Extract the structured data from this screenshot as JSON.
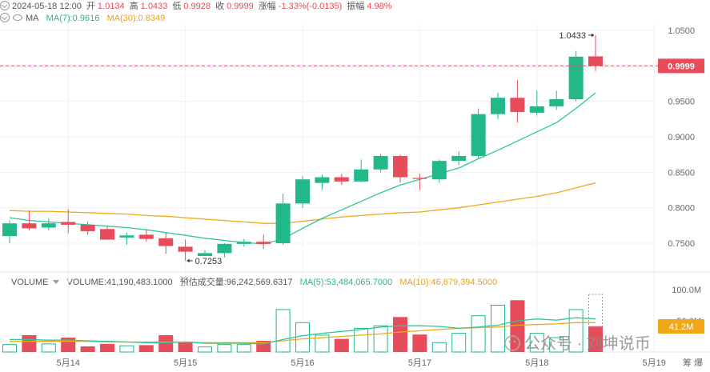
{
  "header": {
    "datetime": "2024-05-18 12:00",
    "open_label": "开",
    "open_value": "1.0134",
    "high_label": "高",
    "high_value": "1.0433",
    "low_label": "低",
    "low_value": "0.9928",
    "close_label": "收",
    "close_value": "0.9999",
    "change_label": "涨幅",
    "change_value": "-1.33%(-0.0135)",
    "amplitude_label": "振幅",
    "amplitude_value": "4.98%"
  },
  "ma_legend": {
    "label": "MA",
    "ma7": "MA(7):0.9616",
    "ma30": "MA(30):0.8349"
  },
  "volume_legend": {
    "label": "VOLUME",
    "volume": "VOLUME:41,190,483.1000",
    "turnover": "预估成交量:96,242,569.6317",
    "ma5": "MA(5):53,484,065.7000",
    "ma10": "MA(10):46,879,394.5000"
  },
  "price_axis": {
    "ticks": [
      "1.0500",
      "1.0000",
      "0.9500",
      "0.9000",
      "0.8500",
      "0.8000",
      "0.7500"
    ],
    "current_price_tag": "0.9999"
  },
  "volume_axis": {
    "ticks": [
      "100.0M",
      "50.0M"
    ],
    "current_volume_tag": "41.2M"
  },
  "annotations": {
    "high": "1.0433",
    "low": "0.7253"
  },
  "watermark": "公众号 · 刘坤说币",
  "bottom_right_text": "筹 爆",
  "colors": {
    "up": "#23b88a",
    "down": "#e74c5a",
    "ma_short": "#2ec79a",
    "ma_long": "#f0a818",
    "grid": "#eef0f3",
    "axis_text": "#666666"
  },
  "chart_data": {
    "type": "candlestick",
    "x_ticks": [
      "5月14",
      "5月15",
      "5月16",
      "5月17",
      "5月18",
      "5月19"
    ],
    "candles": [
      {
        "o": 0.76,
        "h": 0.782,
        "l": 0.75,
        "c": 0.778
      },
      {
        "o": 0.778,
        "h": 0.796,
        "l": 0.768,
        "c": 0.771
      },
      {
        "o": 0.772,
        "h": 0.785,
        "l": 0.768,
        "c": 0.778
      },
      {
        "o": 0.78,
        "h": 0.798,
        "l": 0.764,
        "c": 0.776
      },
      {
        "o": 0.776,
        "h": 0.78,
        "l": 0.762,
        "c": 0.767
      },
      {
        "o": 0.77,
        "h": 0.775,
        "l": 0.755,
        "c": 0.755
      },
      {
        "o": 0.758,
        "h": 0.765,
        "l": 0.748,
        "c": 0.761
      },
      {
        "o": 0.762,
        "h": 0.768,
        "l": 0.752,
        "c": 0.756
      },
      {
        "o": 0.757,
        "h": 0.765,
        "l": 0.735,
        "c": 0.746
      },
      {
        "o": 0.745,
        "h": 0.755,
        "l": 0.7253,
        "c": 0.738
      },
      {
        "o": 0.732,
        "h": 0.74,
        "l": 0.732,
        "c": 0.736
      },
      {
        "o": 0.736,
        "h": 0.75,
        "l": 0.73,
        "c": 0.749
      },
      {
        "o": 0.749,
        "h": 0.756,
        "l": 0.745,
        "c": 0.752
      },
      {
        "o": 0.752,
        "h": 0.762,
        "l": 0.742,
        "c": 0.749
      },
      {
        "o": 0.75,
        "h": 0.82,
        "l": 0.748,
        "c": 0.806
      },
      {
        "o": 0.806,
        "h": 0.845,
        "l": 0.8,
        "c": 0.84
      },
      {
        "o": 0.835,
        "h": 0.847,
        "l": 0.825,
        "c": 0.843
      },
      {
        "o": 0.843,
        "h": 0.848,
        "l": 0.832,
        "c": 0.837
      },
      {
        "o": 0.837,
        "h": 0.868,
        "l": 0.836,
        "c": 0.854
      },
      {
        "o": 0.854,
        "h": 0.876,
        "l": 0.85,
        "c": 0.873
      },
      {
        "o": 0.873,
        "h": 0.875,
        "l": 0.835,
        "c": 0.843
      },
      {
        "o": 0.842,
        "h": 0.848,
        "l": 0.825,
        "c": 0.841
      },
      {
        "o": 0.84,
        "h": 0.868,
        "l": 0.835,
        "c": 0.866
      },
      {
        "o": 0.866,
        "h": 0.88,
        "l": 0.86,
        "c": 0.873
      },
      {
        "o": 0.873,
        "h": 0.94,
        "l": 0.87,
        "c": 0.932
      },
      {
        "o": 0.932,
        "h": 0.962,
        "l": 0.925,
        "c": 0.955
      },
      {
        "o": 0.955,
        "h": 0.98,
        "l": 0.92,
        "c": 0.935
      },
      {
        "o": 0.934,
        "h": 0.965,
        "l": 0.93,
        "c": 0.943
      },
      {
        "o": 0.943,
        "h": 0.965,
        "l": 0.938,
        "c": 0.953
      },
      {
        "o": 0.953,
        "h": 1.021,
        "l": 0.95,
        "c": 1.013
      },
      {
        "o": 1.0134,
        "h": 1.0433,
        "l": 0.9928,
        "c": 0.9999
      }
    ],
    "ma7": [
      0.786,
      0.782,
      0.78,
      0.778,
      0.776,
      0.774,
      0.772,
      0.769,
      0.765,
      0.761,
      0.757,
      0.754,
      0.751,
      0.749,
      0.756,
      0.771,
      0.785,
      0.797,
      0.809,
      0.821,
      0.832,
      0.84,
      0.848,
      0.856,
      0.869,
      0.881,
      0.894,
      0.907,
      0.92,
      0.94,
      0.962
    ],
    "ma30": [
      0.796,
      0.795,
      0.795,
      0.794,
      0.793,
      0.792,
      0.791,
      0.789,
      0.788,
      0.786,
      0.784,
      0.782,
      0.78,
      0.778,
      0.778,
      0.781,
      0.784,
      0.787,
      0.789,
      0.791,
      0.793,
      0.794,
      0.797,
      0.8,
      0.804,
      0.808,
      0.812,
      0.816,
      0.821,
      0.828,
      0.835
    ],
    "volume_million": [
      12,
      27,
      13,
      23,
      9,
      13,
      10,
      11,
      27,
      15,
      8,
      12,
      12,
      18,
      68,
      47,
      27,
      21,
      38,
      42,
      56,
      28,
      15,
      30,
      58,
      75,
      83,
      30,
      23,
      68,
      41
    ],
    "volume_ma": [
      20,
      20,
      19,
      19,
      18,
      17,
      16,
      15,
      15,
      16,
      14,
      14,
      14,
      13,
      20,
      26,
      30,
      33,
      36,
      40,
      42,
      42,
      41,
      38,
      40,
      43,
      50,
      53,
      51,
      55,
      53
    ],
    "volume_ma10": [
      17,
      17,
      17,
      17,
      17,
      16,
      16,
      16,
      16,
      16,
      15,
      15,
      15,
      15,
      18,
      21,
      23,
      25,
      27,
      29,
      32,
      34,
      36,
      38,
      39,
      40,
      43,
      44,
      45,
      47,
      47
    ],
    "price_range": [
      0.715,
      1.055
    ],
    "volume_range": [
      0,
      100
    ]
  }
}
